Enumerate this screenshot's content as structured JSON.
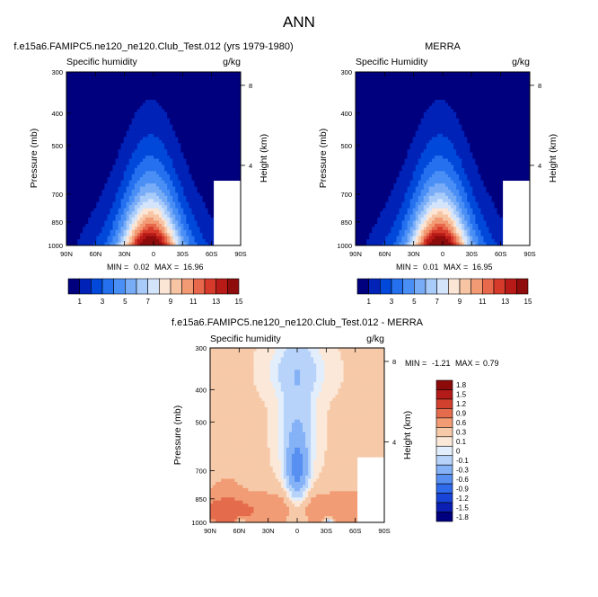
{
  "main_title": "ANN",
  "colors": {
    "seq": [
      "#00007f",
      "#0022b7",
      "#0048d9",
      "#2470ee",
      "#4a8ff5",
      "#78acf7",
      "#a8cbf9",
      "#d3e4fb",
      "#fbe6d6",
      "#f7c4a4",
      "#f29a74",
      "#e8684b",
      "#d63a2a",
      "#b81a18",
      "#8f0c0c"
    ],
    "div": [
      "#00007f",
      "#0b1fb2",
      "#1844d8",
      "#2f6aeb",
      "#5890f2",
      "#85b2f6",
      "#b8d3f9",
      "#e3eefc",
      "#fbe8d8",
      "#f6c9a8",
      "#f19c74",
      "#e46c4d",
      "#d2402e",
      "#b31b18",
      "#8c0a0a"
    ]
  },
  "chart_data": [
    {
      "type": "heatmap",
      "title": "f.e15a6.FAMIPC5.ne120_ne120.Club_Test.012 (yrs 1979-1980)",
      "left_label": "Specific humidity",
      "right_label": "g/kg",
      "ylabel": "Pressure (mb)",
      "y2label": "Height (km)",
      "x_ticks": [
        "90N",
        "60N",
        "30N",
        "0",
        "30S",
        "60S",
        "90S"
      ],
      "y_ticks": [
        "300",
        "400",
        "500",
        "700",
        "850",
        "1000"
      ],
      "y2_ticks": [
        "8",
        "4"
      ],
      "ylim": [
        1000,
        300
      ],
      "xlim": [
        90,
        -90
      ],
      "min_label": "MIN =",
      "min": "0.02",
      "max_label": "MAX =",
      "max": "16.96",
      "levels": [
        1,
        2,
        3,
        4,
        5,
        6,
        7,
        8,
        9,
        10,
        11,
        12,
        13,
        14,
        15
      ],
      "colorbar_labels": [
        "1",
        "3",
        "5",
        "7",
        "9",
        "11",
        "13",
        "15"
      ],
      "peak": 17.0
    },
    {
      "type": "heatmap",
      "title": "MERRA",
      "left_label": "Specific Humidity",
      "right_label": "g/kg",
      "ylabel": "Pressure (mb)",
      "y2label": "Height (km)",
      "x_ticks": [
        "90N",
        "60N",
        "30N",
        "0",
        "30S",
        "60S",
        "90S"
      ],
      "y_ticks": [
        "300",
        "400",
        "500",
        "700",
        "850",
        "1000"
      ],
      "y2_ticks": [
        "8",
        "4"
      ],
      "ylim": [
        1000,
        300
      ],
      "xlim": [
        90,
        -90
      ],
      "min_label": "MIN =",
      "min": "0.01",
      "max_label": "MAX =",
      "max": "16.95",
      "levels": [
        1,
        2,
        3,
        4,
        5,
        6,
        7,
        8,
        9,
        10,
        11,
        12,
        13,
        14,
        15
      ],
      "colorbar_labels": [
        "1",
        "3",
        "5",
        "7",
        "9",
        "11",
        "13",
        "15"
      ],
      "peak": 17.0
    },
    {
      "type": "heatmap",
      "title": "f.e15a6.FAMIPC5.ne120_ne120.Club_Test.012 - MERRA",
      "left_label": "Specific humidity",
      "right_label": "g/kg",
      "ylabel": "Pressure (mb)",
      "y2label": "Height (km)",
      "x_ticks": [
        "90N",
        "60N",
        "30N",
        "0",
        "30S",
        "60S",
        "90S"
      ],
      "y_ticks": [
        "300",
        "400",
        "500",
        "700",
        "850",
        "1000"
      ],
      "y2_ticks": [
        "8",
        "4"
      ],
      "ylim": [
        1000,
        300
      ],
      "xlim": [
        90,
        -90
      ],
      "min_label": "MIN =",
      "min": "-1.21",
      "max_label": "MAX =",
      "max": "0.79",
      "levels": [
        -1.8,
        -1.5,
        -1.2,
        -0.9,
        -0.6,
        -0.3,
        -0.1,
        0,
        0.1,
        0.3,
        0.6,
        0.9,
        1.2,
        1.5,
        1.8
      ],
      "colorbar_labels": [
        "1.8",
        "1.5",
        "1.2",
        "0.9",
        "0.6",
        "0.3",
        "0.1",
        "0",
        "-0.1",
        "-0.3",
        "-0.6",
        "-0.9",
        "-1.2",
        "-1.5",
        "-1.8"
      ]
    }
  ]
}
